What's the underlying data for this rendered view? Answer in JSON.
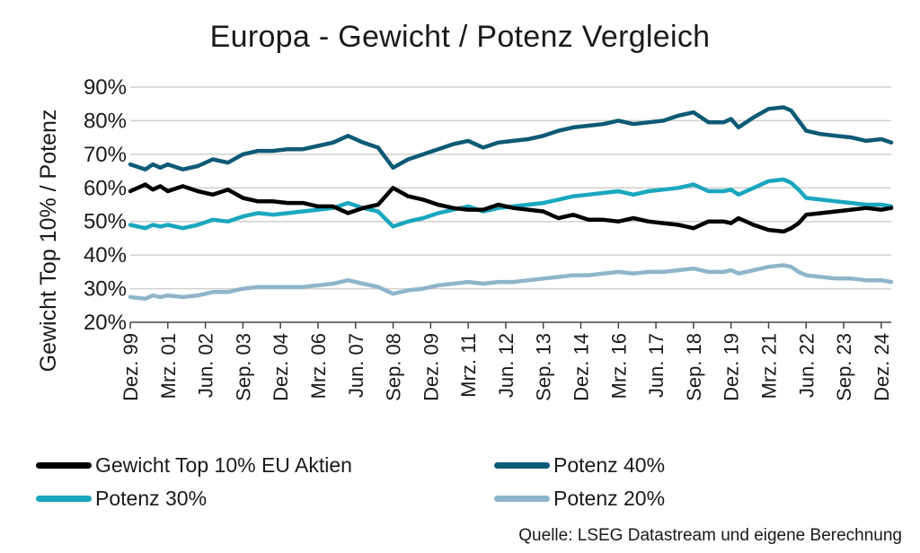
{
  "chart_data": {
    "type": "line",
    "title": "Europa - Gewicht / Potenz Vergleich",
    "ylabel": "Gewicht Top 10% / Potenz",
    "xlabel": "",
    "ylim": [
      20,
      90
    ],
    "yticks": [
      "20%",
      "30%",
      "40%",
      "50%",
      "60%",
      "70%",
      "80%",
      "90%"
    ],
    "x_ticklabels": [
      "Dez. 99",
      "Mrz. 01",
      "Jun. 02",
      "Sep. 03",
      "Dez. 04",
      "Mrz. 06",
      "Jun. 07",
      "Sep. 08",
      "Dez. 09",
      "Mrz. 11",
      "Jun. 12",
      "Sep. 13",
      "Dez. 14",
      "Mrz. 16",
      "Jun. 17",
      "Sep. 18",
      "Dez. 19",
      "Mrz. 21",
      "Jun. 22",
      "Sep. 23",
      "Dez. 24"
    ],
    "x_range": [
      "Dez. 99",
      "Apr. 25"
    ],
    "grid": "horizontal",
    "legend_position": "bottom",
    "series": [
      {
        "name": "Gewicht Top 10% EU Aktien",
        "color": "#000000",
        "points": [
          [
            "Dez. 99",
            59
          ],
          [
            "Jun. 00",
            61
          ],
          [
            "Sep. 00",
            59.5
          ],
          [
            "Dez. 00",
            60.5
          ],
          [
            "Mrz. 01",
            59
          ],
          [
            "Sep. 01",
            60.5
          ],
          [
            "Mrz. 02",
            59
          ],
          [
            "Sep. 02",
            58
          ],
          [
            "Mrz. 03",
            59.5
          ],
          [
            "Sep. 03",
            57
          ],
          [
            "Mrz. 04",
            56
          ],
          [
            "Sep. 04",
            56
          ],
          [
            "Mrz. 05",
            55.5
          ],
          [
            "Sep. 05",
            55.5
          ],
          [
            "Mrz. 06",
            54.5
          ],
          [
            "Sep. 06",
            54.5
          ],
          [
            "Mrz. 07",
            52.5
          ],
          [
            "Sep. 07",
            54
          ],
          [
            "Mrz. 08",
            55
          ],
          [
            "Sep. 08",
            60
          ],
          [
            "Mrz. 09",
            57.5
          ],
          [
            "Sep. 09",
            56.5
          ],
          [
            "Mrz. 10",
            55
          ],
          [
            "Sep. 10",
            54
          ],
          [
            "Mrz. 11",
            53.5
          ],
          [
            "Sep. 11",
            53.5
          ],
          [
            "Mrz. 12",
            55
          ],
          [
            "Sep. 12",
            54
          ],
          [
            "Mrz. 13",
            53.5
          ],
          [
            "Sep. 13",
            53
          ],
          [
            "Mrz. 14",
            51
          ],
          [
            "Sep. 14",
            52
          ],
          [
            "Mrz. 15",
            50.5
          ],
          [
            "Sep. 15",
            50.5
          ],
          [
            "Mrz. 16",
            50
          ],
          [
            "Sep. 16",
            51
          ],
          [
            "Mrz. 17",
            50
          ],
          [
            "Sep. 17",
            49.5
          ],
          [
            "Mrz. 18",
            49
          ],
          [
            "Sep. 18",
            48
          ],
          [
            "Mrz. 19",
            50
          ],
          [
            "Sep. 19",
            50
          ],
          [
            "Dez. 19",
            49.5
          ],
          [
            "Mrz. 20",
            51
          ],
          [
            "Sep. 20",
            49
          ],
          [
            "Mrz. 21",
            47.5
          ],
          [
            "Sep. 21",
            47
          ],
          [
            "Dez. 21",
            48
          ],
          [
            "Mrz. 22",
            49.5
          ],
          [
            "Jun. 22",
            52
          ],
          [
            "Dez. 22",
            52.5
          ],
          [
            "Jun. 23",
            53
          ],
          [
            "Dez. 23",
            53.5
          ],
          [
            "Jun. 24",
            54
          ],
          [
            "Dez. 24",
            53.5
          ],
          [
            "Apr. 25",
            54
          ]
        ]
      },
      {
        "name": "Potenz 40%",
        "color": "#0d5a76",
        "points": [
          [
            "Dez. 99",
            67
          ],
          [
            "Jun. 00",
            65.5
          ],
          [
            "Sep. 00",
            67
          ],
          [
            "Dez. 00",
            66
          ],
          [
            "Mrz. 01",
            67
          ],
          [
            "Sep. 01",
            65.5
          ],
          [
            "Mrz. 02",
            66.5
          ],
          [
            "Sep. 02",
            68.5
          ],
          [
            "Mrz. 03",
            67.5
          ],
          [
            "Sep. 03",
            70
          ],
          [
            "Mrz. 04",
            71
          ],
          [
            "Sep. 04",
            71
          ],
          [
            "Mrz. 05",
            71.5
          ],
          [
            "Sep. 05",
            71.5
          ],
          [
            "Mrz. 06",
            72.5
          ],
          [
            "Sep. 06",
            73.5
          ],
          [
            "Mrz. 07",
            75.5
          ],
          [
            "Sep. 07",
            73.5
          ],
          [
            "Mrz. 08",
            72
          ],
          [
            "Sep. 08",
            66
          ],
          [
            "Mrz. 09",
            68.5
          ],
          [
            "Sep. 09",
            70
          ],
          [
            "Mrz. 10",
            71.5
          ],
          [
            "Sep. 10",
            73
          ],
          [
            "Mrz. 11",
            74
          ],
          [
            "Sep. 11",
            72
          ],
          [
            "Mrz. 12",
            73.5
          ],
          [
            "Sep. 12",
            74
          ],
          [
            "Mrz. 13",
            74.5
          ],
          [
            "Sep. 13",
            75.5
          ],
          [
            "Mrz. 14",
            77
          ],
          [
            "Sep. 14",
            78
          ],
          [
            "Mrz. 15",
            78.5
          ],
          [
            "Sep. 15",
            79
          ],
          [
            "Mrz. 16",
            80
          ],
          [
            "Sep. 16",
            79
          ],
          [
            "Mrz. 17",
            79.5
          ],
          [
            "Sep. 17",
            80
          ],
          [
            "Mrz. 18",
            81.5
          ],
          [
            "Sep. 18",
            82.5
          ],
          [
            "Mrz. 19",
            79.5
          ],
          [
            "Sep. 19",
            79.5
          ],
          [
            "Dez. 19",
            80.5
          ],
          [
            "Mrz. 20",
            78
          ],
          [
            "Sep. 20",
            81
          ],
          [
            "Mrz. 21",
            83.5
          ],
          [
            "Sep. 21",
            84
          ],
          [
            "Dez. 21",
            83
          ],
          [
            "Mrz. 22",
            80
          ],
          [
            "Jun. 22",
            77
          ],
          [
            "Dez. 22",
            76
          ],
          [
            "Jun. 23",
            75.5
          ],
          [
            "Dez. 23",
            75
          ],
          [
            "Jun. 24",
            74
          ],
          [
            "Dez. 24",
            74.5
          ],
          [
            "Apr. 25",
            73.5
          ]
        ]
      },
      {
        "name": "Potenz 30%",
        "color": "#1aa7bf",
        "points": [
          [
            "Dez. 99",
            49
          ],
          [
            "Jun. 00",
            48
          ],
          [
            "Sep. 00",
            49
          ],
          [
            "Dez. 00",
            48.5
          ],
          [
            "Mrz. 01",
            49
          ],
          [
            "Sep. 01",
            48
          ],
          [
            "Mrz. 02",
            49
          ],
          [
            "Sep. 02",
            50.5
          ],
          [
            "Mrz. 03",
            50
          ],
          [
            "Sep. 03",
            51.5
          ],
          [
            "Mrz. 04",
            52.5
          ],
          [
            "Sep. 04",
            52
          ],
          [
            "Mrz. 05",
            52.5
          ],
          [
            "Sep. 05",
            53
          ],
          [
            "Mrz. 06",
            53.5
          ],
          [
            "Sep. 06",
            54
          ],
          [
            "Mrz. 07",
            55.5
          ],
          [
            "Sep. 07",
            54
          ],
          [
            "Mrz. 08",
            53
          ],
          [
            "Sep. 08",
            48.5
          ],
          [
            "Mrz. 09",
            50
          ],
          [
            "Sep. 09",
            51
          ],
          [
            "Mrz. 10",
            52.5
          ],
          [
            "Sep. 10",
            53.5
          ],
          [
            "Mrz. 11",
            54.5
          ],
          [
            "Sep. 11",
            53
          ],
          [
            "Mrz. 12",
            54
          ],
          [
            "Sep. 12",
            54.5
          ],
          [
            "Mrz. 13",
            55
          ],
          [
            "Sep. 13",
            55.5
          ],
          [
            "Mrz. 14",
            56.5
          ],
          [
            "Sep. 14",
            57.5
          ],
          [
            "Mrz. 15",
            58
          ],
          [
            "Sep. 15",
            58.5
          ],
          [
            "Mrz. 16",
            59
          ],
          [
            "Sep. 16",
            58
          ],
          [
            "Mrz. 17",
            59
          ],
          [
            "Sep. 17",
            59.5
          ],
          [
            "Mrz. 18",
            60
          ],
          [
            "Sep. 18",
            61
          ],
          [
            "Mrz. 19",
            59
          ],
          [
            "Sep. 19",
            59
          ],
          [
            "Dez. 19",
            59.5
          ],
          [
            "Mrz. 20",
            58
          ],
          [
            "Sep. 20",
            60
          ],
          [
            "Mrz. 21",
            62
          ],
          [
            "Sep. 21",
            62.5
          ],
          [
            "Dez. 21",
            61.5
          ],
          [
            "Mrz. 22",
            59.5
          ],
          [
            "Jun. 22",
            57
          ],
          [
            "Dez. 22",
            56.5
          ],
          [
            "Jun. 23",
            56
          ],
          [
            "Dez. 23",
            55.5
          ],
          [
            "Jun. 24",
            55
          ],
          [
            "Dez. 24",
            55
          ],
          [
            "Apr. 25",
            54.5
          ]
        ]
      },
      {
        "name": "Potenz 20%",
        "color": "#8eb5c9",
        "points": [
          [
            "Dez. 99",
            27.5
          ],
          [
            "Jun. 00",
            27
          ],
          [
            "Sep. 00",
            28
          ],
          [
            "Dez. 00",
            27.5
          ],
          [
            "Mrz. 01",
            28
          ],
          [
            "Sep. 01",
            27.5
          ],
          [
            "Mrz. 02",
            28
          ],
          [
            "Sep. 02",
            29
          ],
          [
            "Mrz. 03",
            29
          ],
          [
            "Sep. 03",
            30
          ],
          [
            "Mrz. 04",
            30.5
          ],
          [
            "Sep. 04",
            30.5
          ],
          [
            "Mrz. 05",
            30.5
          ],
          [
            "Sep. 05",
            30.5
          ],
          [
            "Mrz. 06",
            31
          ],
          [
            "Sep. 06",
            31.5
          ],
          [
            "Mrz. 07",
            32.5
          ],
          [
            "Sep. 07",
            31.5
          ],
          [
            "Mrz. 08",
            30.5
          ],
          [
            "Sep. 08",
            28.5
          ],
          [
            "Mrz. 09",
            29.5
          ],
          [
            "Sep. 09",
            30
          ],
          [
            "Mrz. 10",
            31
          ],
          [
            "Sep. 10",
            31.5
          ],
          [
            "Mrz. 11",
            32
          ],
          [
            "Sep. 11",
            31.5
          ],
          [
            "Mrz. 12",
            32
          ],
          [
            "Sep. 12",
            32
          ],
          [
            "Mrz. 13",
            32.5
          ],
          [
            "Sep. 13",
            33
          ],
          [
            "Mrz. 14",
            33.5
          ],
          [
            "Sep. 14",
            34
          ],
          [
            "Mrz. 15",
            34
          ],
          [
            "Sep. 15",
            34.5
          ],
          [
            "Mrz. 16",
            35
          ],
          [
            "Sep. 16",
            34.5
          ],
          [
            "Mrz. 17",
            35
          ],
          [
            "Sep. 17",
            35
          ],
          [
            "Mrz. 18",
            35.5
          ],
          [
            "Sep. 18",
            36
          ],
          [
            "Mrz. 19",
            35
          ],
          [
            "Sep. 19",
            35
          ],
          [
            "Dez. 19",
            35.5
          ],
          [
            "Mrz. 20",
            34.5
          ],
          [
            "Sep. 20",
            35.5
          ],
          [
            "Mrz. 21",
            36.5
          ],
          [
            "Sep. 21",
            37
          ],
          [
            "Dez. 21",
            36.5
          ],
          [
            "Mrz. 22",
            35
          ],
          [
            "Jun. 22",
            34
          ],
          [
            "Dez. 22",
            33.5
          ],
          [
            "Jun. 23",
            33
          ],
          [
            "Dez. 23",
            33
          ],
          [
            "Jun. 24",
            32.5
          ],
          [
            "Dez. 24",
            32.5
          ],
          [
            "Apr. 25",
            32
          ]
        ]
      }
    ]
  },
  "source_note": "Quelle: LSEG Datastream und eigene Berechnung"
}
